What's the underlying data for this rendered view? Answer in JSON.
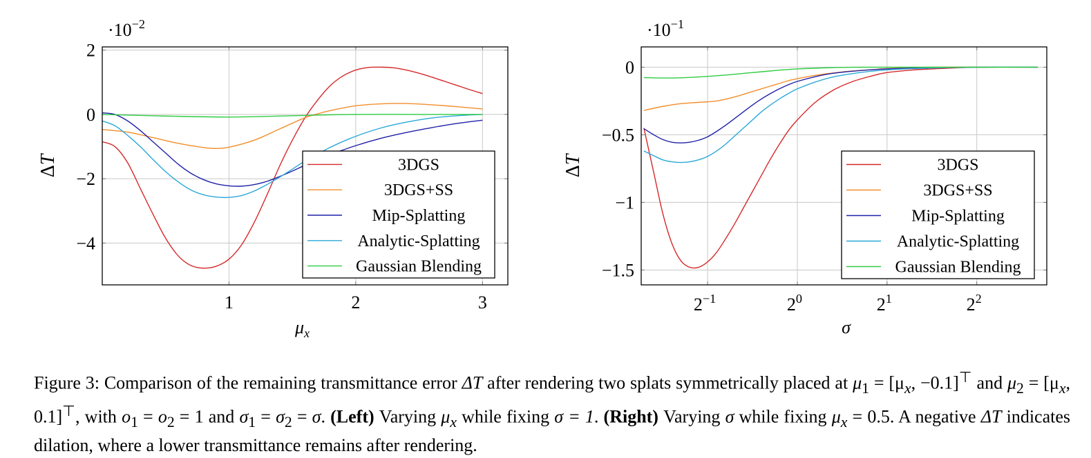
{
  "chart_data": [
    {
      "type": "line",
      "id": "left",
      "title": "",
      "xlabel": "μ_x",
      "ylabel": "ΔT",
      "y_scale_note": "·10^−2",
      "y_scale_base": "10",
      "y_scale_exp": "−2",
      "xlim": [
        0,
        3.2
      ],
      "ylim": [
        -5.3,
        2.1
      ],
      "xticks": [
        1,
        2,
        3
      ],
      "xtick_labels": [
        "1",
        "2",
        "3"
      ],
      "yticks": [
        2,
        0,
        -2,
        -4
      ],
      "ytick_labels": [
        "2",
        "0",
        "−2",
        "−4"
      ],
      "grid": true,
      "legend_position": "bottom-right",
      "series": [
        {
          "name": "3DGS",
          "color": "#d62728",
          "x": [
            0,
            0.1,
            0.2,
            0.3,
            0.4,
            0.5,
            0.6,
            0.7,
            0.8,
            0.9,
            1.0,
            1.1,
            1.2,
            1.3,
            1.4,
            1.5,
            1.6,
            1.7,
            1.8,
            1.9,
            2.0,
            2.1,
            2.2,
            2.3,
            2.4,
            2.5,
            2.6,
            2.7,
            2.8,
            2.9,
            3.0
          ],
          "y": [
            -0.85,
            -1.0,
            -1.5,
            -2.3,
            -3.1,
            -3.85,
            -4.4,
            -4.7,
            -4.78,
            -4.72,
            -4.5,
            -4.05,
            -3.35,
            -2.5,
            -1.6,
            -0.8,
            -0.1,
            0.45,
            0.9,
            1.2,
            1.38,
            1.46,
            1.47,
            1.45,
            1.38,
            1.28,
            1.16,
            1.03,
            0.9,
            0.77,
            0.65
          ]
        },
        {
          "name": "3DGS+SS",
          "color": "#f28e2b",
          "x": [
            0,
            0.2,
            0.4,
            0.6,
            0.8,
            0.9,
            1.0,
            1.2,
            1.4,
            1.6,
            1.7,
            1.8,
            2.0,
            2.2,
            2.4,
            2.6,
            2.8,
            3.0
          ],
          "y": [
            -0.47,
            -0.55,
            -0.72,
            -0.9,
            -1.03,
            -1.06,
            -1.02,
            -0.8,
            -0.45,
            -0.1,
            0.02,
            0.12,
            0.27,
            0.33,
            0.34,
            0.3,
            0.24,
            0.17
          ]
        },
        {
          "name": "Mip-Splatting",
          "color": "#1f1fa8",
          "x": [
            0,
            0.1,
            0.2,
            0.3,
            0.4,
            0.5,
            0.6,
            0.7,
            0.8,
            0.9,
            1.0,
            1.1,
            1.2,
            1.3,
            1.4,
            1.5,
            1.6,
            1.8,
            2.0,
            2.2,
            2.4,
            2.6,
            2.8,
            3.0
          ],
          "y": [
            0.05,
            0.0,
            -0.2,
            -0.5,
            -0.85,
            -1.2,
            -1.55,
            -1.83,
            -2.03,
            -2.16,
            -2.22,
            -2.23,
            -2.18,
            -2.08,
            -1.93,
            -1.76,
            -1.58,
            -1.25,
            -0.97,
            -0.74,
            -0.56,
            -0.41,
            -0.28,
            -0.18
          ]
        },
        {
          "name": "Analytic-Splatting",
          "color": "#29a8d8",
          "x": [
            0,
            0.1,
            0.2,
            0.3,
            0.4,
            0.5,
            0.6,
            0.7,
            0.8,
            0.9,
            1.0,
            1.1,
            1.2,
            1.3,
            1.4,
            1.5,
            1.6,
            1.8,
            2.0,
            2.2,
            2.4,
            2.6,
            2.8,
            3.0
          ],
          "y": [
            -0.2,
            -0.35,
            -0.65,
            -1.0,
            -1.4,
            -1.78,
            -2.1,
            -2.35,
            -2.5,
            -2.57,
            -2.58,
            -2.52,
            -2.38,
            -2.18,
            -1.95,
            -1.7,
            -1.45,
            -1.02,
            -0.68,
            -0.42,
            -0.24,
            -0.11,
            -0.04,
            0.0
          ]
        },
        {
          "name": "Gaussian Blending",
          "color": "#2ecc40",
          "x": [
            0,
            0.5,
            1.0,
            1.5,
            2.0,
            2.5,
            3.0
          ],
          "y": [
            0.0,
            -0.05,
            -0.08,
            -0.04,
            0.0,
            0.0,
            0.0
          ]
        }
      ]
    },
    {
      "type": "line",
      "id": "right",
      "title": "",
      "xlabel": "σ",
      "ylabel": "ΔT",
      "x_scale": "log2",
      "y_scale_note": "·10^−1",
      "y_scale_base": "10",
      "y_scale_exp": "−1",
      "xlim_log2": [
        -1.74,
        2.78
      ],
      "ylim": [
        -1.61,
        0.15
      ],
      "xticks_log2": [
        -1,
        0,
        1,
        2
      ],
      "xtick_labels": [
        {
          "base": "2",
          "exp": "−1"
        },
        {
          "base": "2",
          "exp": "0"
        },
        {
          "base": "2",
          "exp": "1"
        },
        {
          "base": "2",
          "exp": "2"
        }
      ],
      "yticks": [
        0,
        -0.5,
        -1,
        -1.5
      ],
      "ytick_labels": [
        "0",
        "−0.5",
        "−1",
        "−1.5"
      ],
      "grid": true,
      "legend_position": "bottom-right",
      "series": [
        {
          "name": "3DGS",
          "color": "#d62728",
          "log2x": [
            -1.71,
            -1.6,
            -1.5,
            -1.4,
            -1.3,
            -1.2,
            -1.1,
            -1.0,
            -0.9,
            -0.8,
            -0.7,
            -0.6,
            -0.5,
            -0.4,
            -0.3,
            -0.2,
            -0.1,
            0.0,
            0.2,
            0.4,
            0.6,
            0.8,
            1.0,
            1.3,
            1.6,
            2.0,
            2.68
          ],
          "y": [
            -0.45,
            -0.78,
            -1.08,
            -1.3,
            -1.43,
            -1.48,
            -1.48,
            -1.44,
            -1.37,
            -1.27,
            -1.16,
            -1.04,
            -0.92,
            -0.8,
            -0.68,
            -0.57,
            -0.47,
            -0.39,
            -0.26,
            -0.17,
            -0.11,
            -0.07,
            -0.04,
            -0.02,
            -0.01,
            0.0,
            0.0
          ]
        },
        {
          "name": "3DGS+SS",
          "color": "#f28e2b",
          "log2x": [
            -1.71,
            -1.5,
            -1.3,
            -1.1,
            -0.9,
            -0.7,
            -0.5,
            -0.3,
            -0.1,
            0.0,
            0.2,
            0.5,
            0.8,
            1.0,
            1.5,
            2.0,
            2.68
          ],
          "y": [
            -0.32,
            -0.29,
            -0.27,
            -0.26,
            -0.25,
            -0.22,
            -0.18,
            -0.14,
            -0.1,
            -0.085,
            -0.06,
            -0.035,
            -0.02,
            -0.01,
            0.0,
            0.0,
            0.0
          ]
        },
        {
          "name": "Mip-Splatting",
          "color": "#1f1fa8",
          "log2x": [
            -1.71,
            -1.6,
            -1.5,
            -1.4,
            -1.3,
            -1.2,
            -1.1,
            -1.0,
            -0.9,
            -0.8,
            -0.7,
            -0.6,
            -0.5,
            -0.4,
            -0.3,
            -0.2,
            -0.1,
            0.0,
            0.2,
            0.4,
            0.7,
            1.0,
            1.5,
            2.0,
            2.68
          ],
          "y": [
            -0.455,
            -0.5,
            -0.535,
            -0.555,
            -0.56,
            -0.555,
            -0.54,
            -0.515,
            -0.475,
            -0.43,
            -0.38,
            -0.33,
            -0.28,
            -0.235,
            -0.195,
            -0.16,
            -0.13,
            -0.105,
            -0.07,
            -0.045,
            -0.025,
            -0.013,
            -0.004,
            0.0,
            0.0
          ]
        },
        {
          "name": "Analytic-Splatting",
          "color": "#29a8d8",
          "log2x": [
            -1.71,
            -1.6,
            -1.5,
            -1.4,
            -1.3,
            -1.2,
            -1.1,
            -1.0,
            -0.9,
            -0.8,
            -0.7,
            -0.6,
            -0.5,
            -0.4,
            -0.3,
            -0.2,
            -0.1,
            0.0,
            0.2,
            0.4,
            0.7,
            1.0,
            1.5,
            2.0,
            2.68
          ],
          "y": [
            -0.62,
            -0.655,
            -0.685,
            -0.7,
            -0.705,
            -0.7,
            -0.685,
            -0.66,
            -0.62,
            -0.57,
            -0.51,
            -0.45,
            -0.39,
            -0.33,
            -0.28,
            -0.235,
            -0.195,
            -0.16,
            -0.11,
            -0.072,
            -0.04,
            -0.02,
            -0.006,
            0.0,
            0.0
          ]
        },
        {
          "name": "Gaussian Blending",
          "color": "#2ecc40",
          "log2x": [
            -1.71,
            -1.4,
            -1.1,
            -0.8,
            -0.5,
            -0.2,
            0.0,
            0.3,
            0.6,
            1.0,
            2.0,
            2.68
          ],
          "y": [
            -0.077,
            -0.08,
            -0.072,
            -0.058,
            -0.04,
            -0.022,
            -0.013,
            -0.005,
            -0.001,
            0.0,
            0.0,
            0.0
          ]
        }
      ]
    }
  ],
  "caption": {
    "p1": "Figure 3: Comparison of the remaining transmittance error ",
    "dT": "ΔT",
    "p2": " after rendering two splats symmetrically placed at ",
    "mu1": "μ",
    "mu1_sub": "1",
    "eq": " = ",
    "vec1": "[μ",
    "vec1_sub": "x",
    "vec1_rest": ", −0.1]",
    "top": "⊤",
    "and": " and ",
    "mu2": "μ",
    "mu2_sub": "2",
    "vec2": "[μ",
    "vec2_sub": "x",
    "vec2_rest": ", 0.1]",
    "with": ", with ",
    "o1": "o",
    "o1_sub": "1",
    "o2": "o",
    "o2_sub": "2",
    "one": "1",
    "and2": " and ",
    "s1": "σ",
    "s1_sub": "1",
    "s2": "σ",
    "s2_sub": "2",
    "sigma": "σ",
    "period": ". ",
    "left_bold": "(Left)",
    "p3": " Varying ",
    "mux": "μ",
    "mux_sub": "x",
    "p4": " while fixing ",
    "sig_eq": "σ = 1",
    "right_bold": "(Right)",
    "p5": " Varying ",
    "p6": " while fixing ",
    "mux2_val": " = 0.5",
    "p7": ". A negative ",
    "p8": " indicates dilation, where a lower transmittance remains after rendering."
  }
}
